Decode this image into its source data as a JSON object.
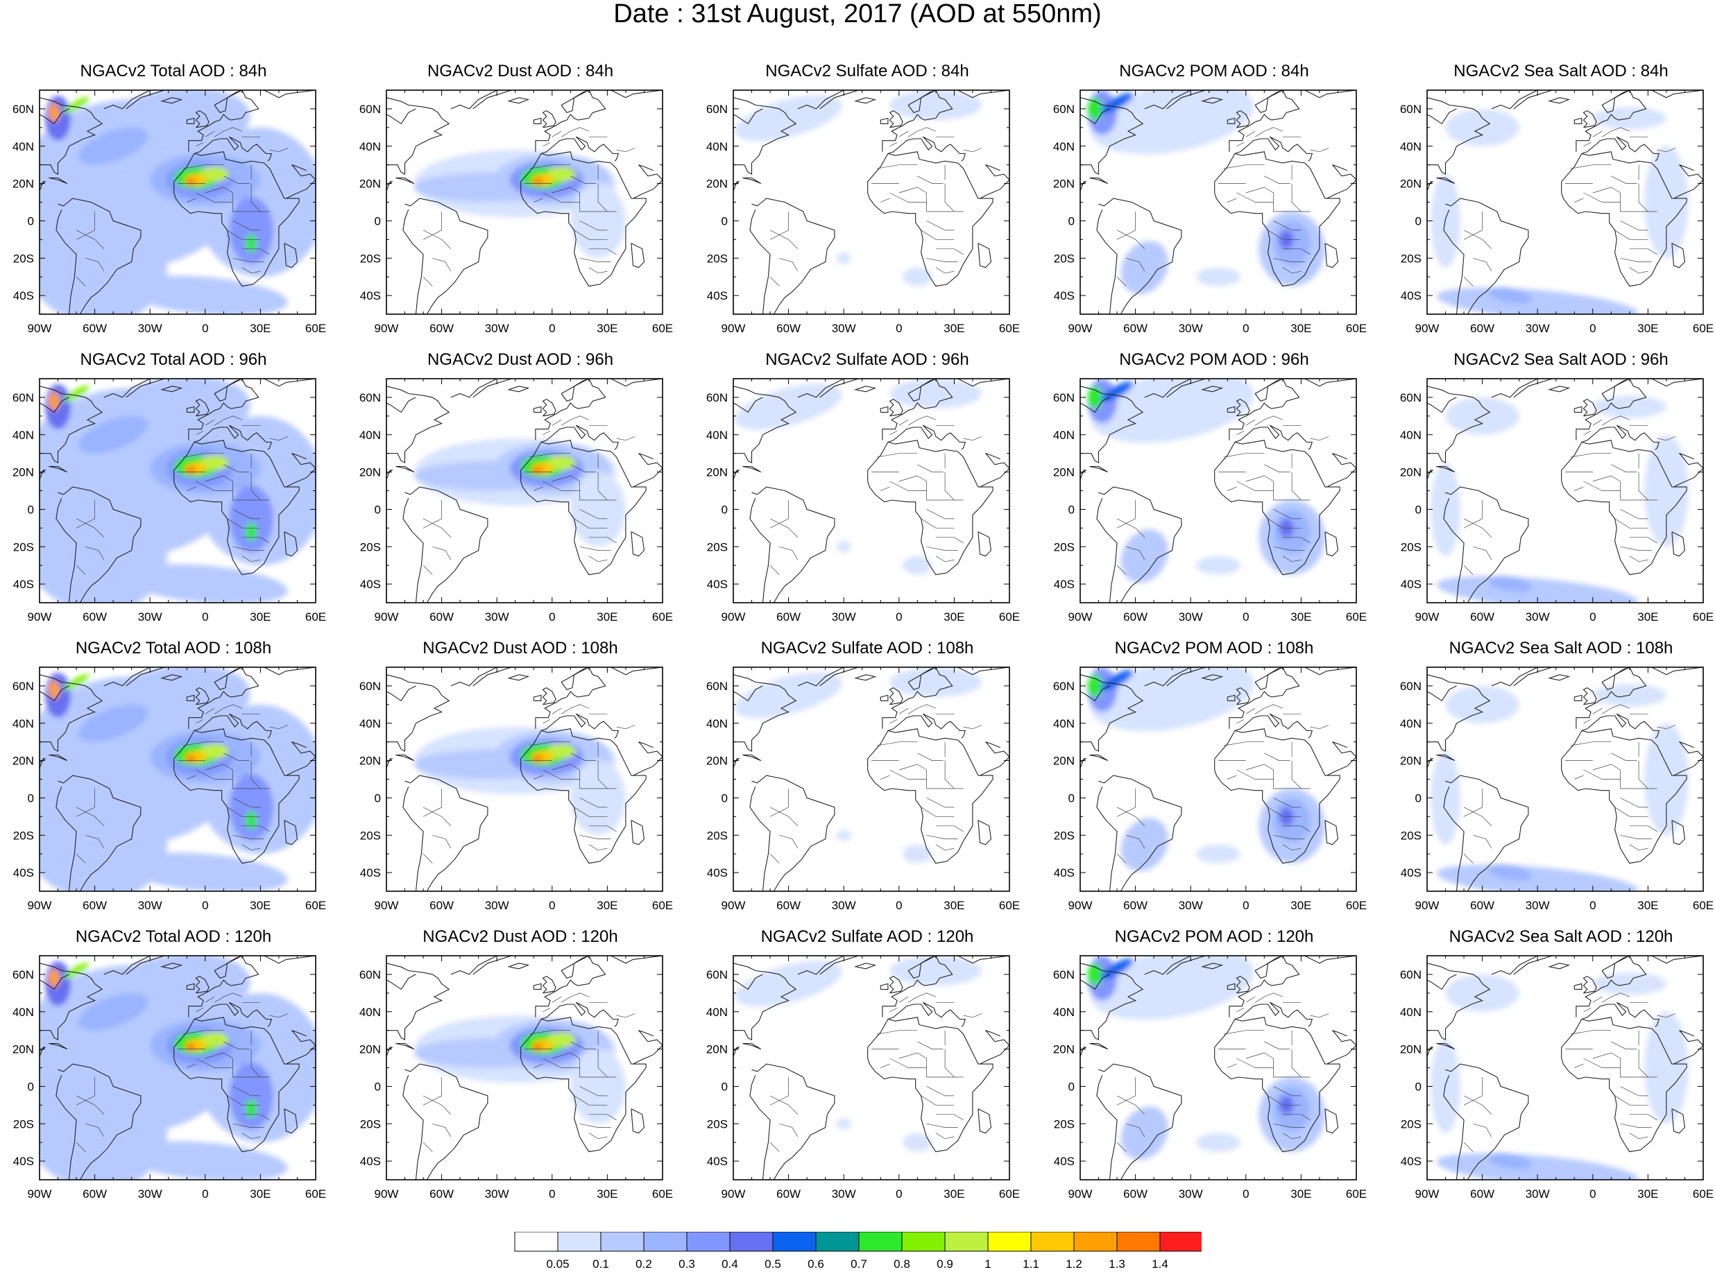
{
  "title": "Date : 31st August, 2017 (AOD at 550nm)",
  "map": {
    "lon_range": [
      -90,
      60
    ],
    "lat_range": [
      -50,
      70
    ],
    "lon_ticks": [
      "90W",
      "60W",
      "30W",
      "0",
      "30E",
      "60E"
    ],
    "lat_ticks": [
      "60N",
      "40N",
      "20N",
      "0",
      "20S",
      "40S"
    ]
  },
  "panels": [
    {
      "title": "NGACv2 Total AOD : 84h",
      "species": "total"
    },
    {
      "title": "NGACv2 Dust AOD : 84h",
      "species": "dust"
    },
    {
      "title": "NGACv2 Sulfate AOD : 84h",
      "species": "sulfate"
    },
    {
      "title": "NGACv2 POM AOD : 84h",
      "species": "pom"
    },
    {
      "title": "NGACv2 Sea Salt AOD : 84h",
      "species": "seasalt"
    },
    {
      "title": "NGACv2 Total AOD : 96h",
      "species": "total"
    },
    {
      "title": "NGACv2 Dust AOD : 96h",
      "species": "dust"
    },
    {
      "title": "NGACv2 Sulfate AOD : 96h",
      "species": "sulfate"
    },
    {
      "title": "NGACv2 POM AOD : 96h",
      "species": "pom"
    },
    {
      "title": "NGACv2 Sea Salt AOD : 96h",
      "species": "seasalt"
    },
    {
      "title": "NGACv2 Total AOD : 108h",
      "species": "total"
    },
    {
      "title": "NGACv2 Dust AOD : 108h",
      "species": "dust"
    },
    {
      "title": "NGACv2 Sulfate AOD : 108h",
      "species": "sulfate"
    },
    {
      "title": "NGACv2 POM AOD : 108h",
      "species": "pom"
    },
    {
      "title": "NGACv2 Sea Salt AOD : 108h",
      "species": "seasalt"
    },
    {
      "title": "NGACv2 Total AOD : 120h",
      "species": "total"
    },
    {
      "title": "NGACv2 Dust AOD : 120h",
      "species": "dust"
    },
    {
      "title": "NGACv2 Sulfate AOD : 120h",
      "species": "sulfate"
    },
    {
      "title": "NGACv2 POM AOD : 120h",
      "species": "pom"
    },
    {
      "title": "NGACv2 Sea Salt  AOD : 120h",
      "species": "seasalt"
    }
  ],
  "colorbar": {
    "labels": [
      "0.05",
      "0.1",
      "0.2",
      "0.3",
      "0.4",
      "0.5",
      "0.6",
      "0.7",
      "0.8",
      "0.9",
      "1",
      "1.1",
      "1.2",
      "1.3",
      "1.4"
    ],
    "colors": [
      "#ffffff",
      "#d7e3ff",
      "#b7caff",
      "#9ab4ff",
      "#8296ff",
      "#6670f0",
      "#0a64f0",
      "#009696",
      "#2ee82e",
      "#82f000",
      "#bef040",
      "#ffff00",
      "#ffc800",
      "#ffa000",
      "#ff7800",
      "#ff1e1e"
    ]
  }
}
